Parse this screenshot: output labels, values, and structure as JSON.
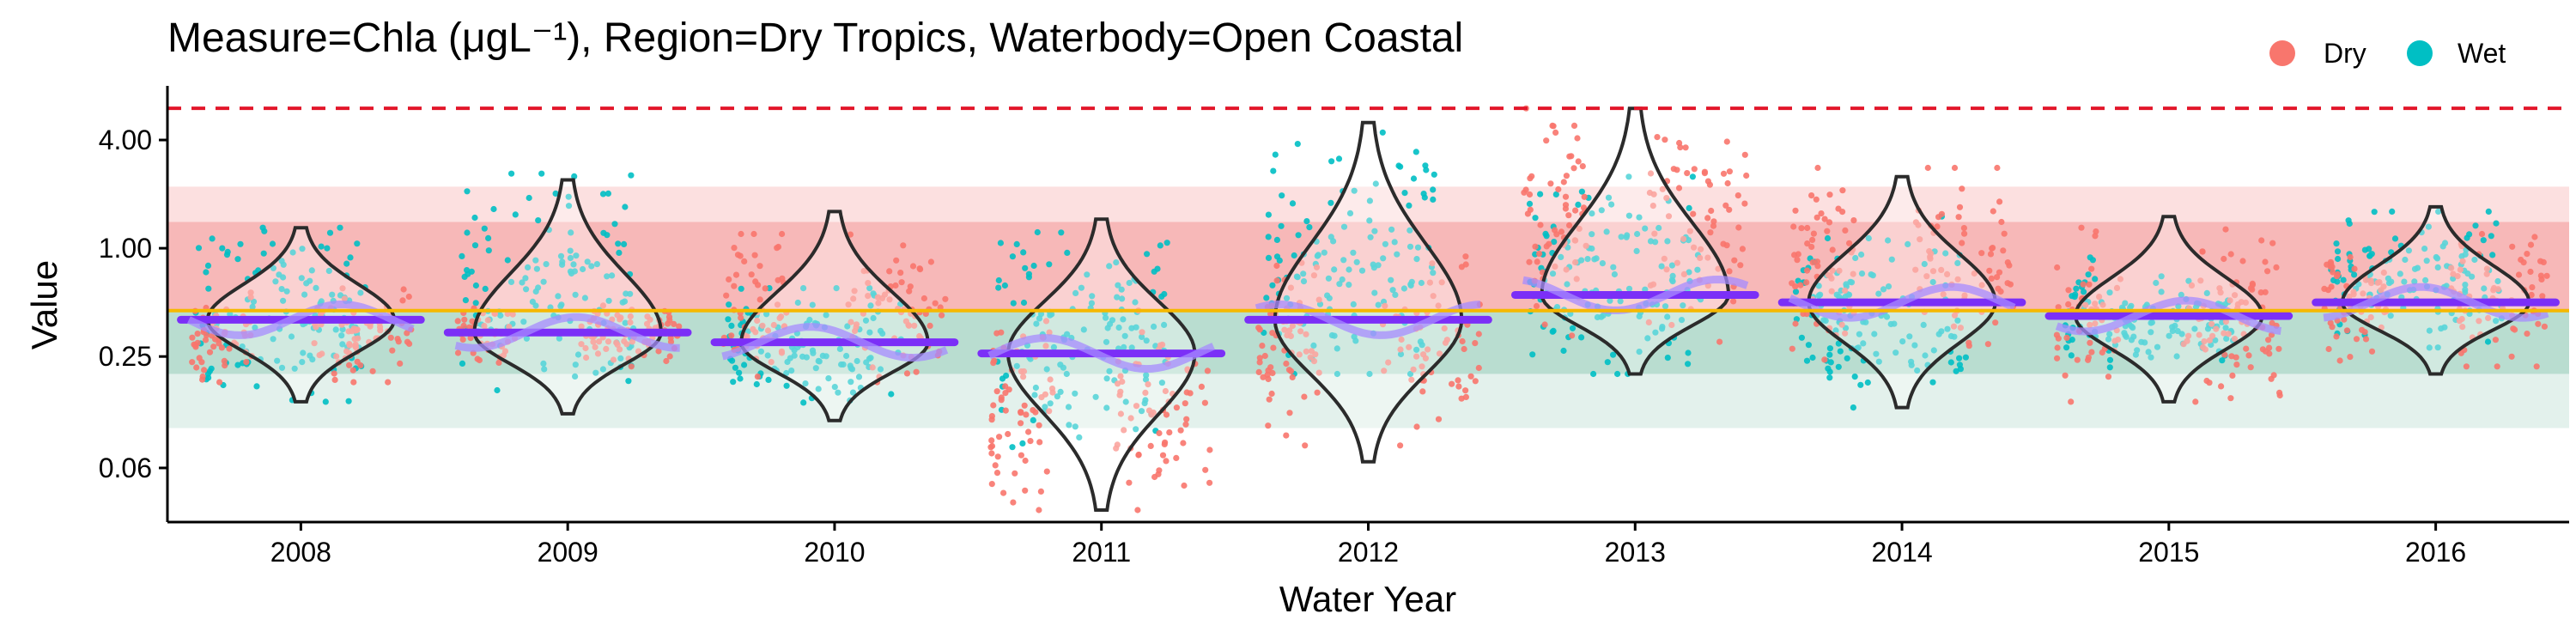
{
  "chart_data": {
    "type": "scatter",
    "title": "Measure=Chla (μgL⁻¹), Region=Dry Tropics, Waterbody=Open Coastal",
    "xlabel": "Water Year",
    "ylabel": "Value",
    "y_scale": "log",
    "ylim": [
      0.03,
      8.0
    ],
    "y_ticks": [
      {
        "value": 4.0,
        "label": "4.00"
      },
      {
        "value": 1.0,
        "label": "1.00"
      },
      {
        "value": 0.25,
        "label": "0.25"
      },
      {
        "value": 0.06,
        "label": "0.06"
      }
    ],
    "categories": [
      "2008",
      "2009",
      "2010",
      "2011",
      "2012",
      "2013",
      "2014",
      "2015",
      "2016"
    ],
    "legend": {
      "position": "top-right",
      "entries": [
        {
          "label": "Dry",
          "color": "#F8766D"
        },
        {
          "label": "Wet",
          "color": "#00BFC4"
        }
      ]
    },
    "reference_lines": {
      "guideline": 0.45,
      "upper_dashed": 6.0
    },
    "threshold_bands": [
      {
        "from": 1.4,
        "to": 2.2,
        "color": "#FCE0E0"
      },
      {
        "from": 0.45,
        "to": 1.4,
        "color": "#F7B8B8"
      },
      {
        "from": 0.2,
        "to": 0.45,
        "color": "#B9DDD0"
      },
      {
        "from": 0.1,
        "to": 0.2,
        "color": "#E3F1EC"
      }
    ],
    "years": [
      {
        "year": "2008",
        "median": 0.4,
        "q_low": 0.14,
        "q_high": 1.3,
        "dry_range": [
          0.18,
          0.6
        ],
        "wet_range": [
          0.14,
          1.3
        ]
      },
      {
        "year": "2009",
        "median": 0.34,
        "q_low": 0.12,
        "q_high": 2.4,
        "dry_range": [
          0.22,
          0.5
        ],
        "wet_range": [
          0.14,
          2.6
        ]
      },
      {
        "year": "2010",
        "median": 0.3,
        "q_low": 0.11,
        "q_high": 1.6,
        "dry_range": [
          0.18,
          1.2
        ],
        "wet_range": [
          0.13,
          0.6
        ]
      },
      {
        "year": "2011",
        "median": 0.26,
        "q_low": 0.035,
        "q_high": 1.45,
        "dry_range": [
          0.035,
          0.45
        ],
        "wet_range": [
          0.07,
          1.5
        ]
      },
      {
        "year": "2012",
        "median": 0.4,
        "q_low": 0.065,
        "q_high": 5.0,
        "dry_range": [
          0.08,
          0.9
        ],
        "wet_range": [
          0.2,
          5.0
        ]
      },
      {
        "year": "2013",
        "median": 0.55,
        "q_low": 0.2,
        "q_high": 6.0,
        "dry_range": [
          0.3,
          6.0
        ],
        "wet_range": [
          0.2,
          2.5
        ]
      },
      {
        "year": "2014",
        "median": 0.5,
        "q_low": 0.13,
        "q_high": 2.5,
        "dry_range": [
          0.24,
          2.8
        ],
        "wet_range": [
          0.13,
          1.5
        ]
      },
      {
        "year": "2015",
        "median": 0.42,
        "q_low": 0.14,
        "q_high": 1.5,
        "dry_range": [
          0.14,
          1.3
        ],
        "wet_range": [
          0.2,
          0.9
        ]
      },
      {
        "year": "2016",
        "median": 0.5,
        "q_low": 0.2,
        "q_high": 1.7,
        "dry_range": [
          0.22,
          1.2
        ],
        "wet_range": [
          0.28,
          1.6
        ]
      }
    ]
  }
}
